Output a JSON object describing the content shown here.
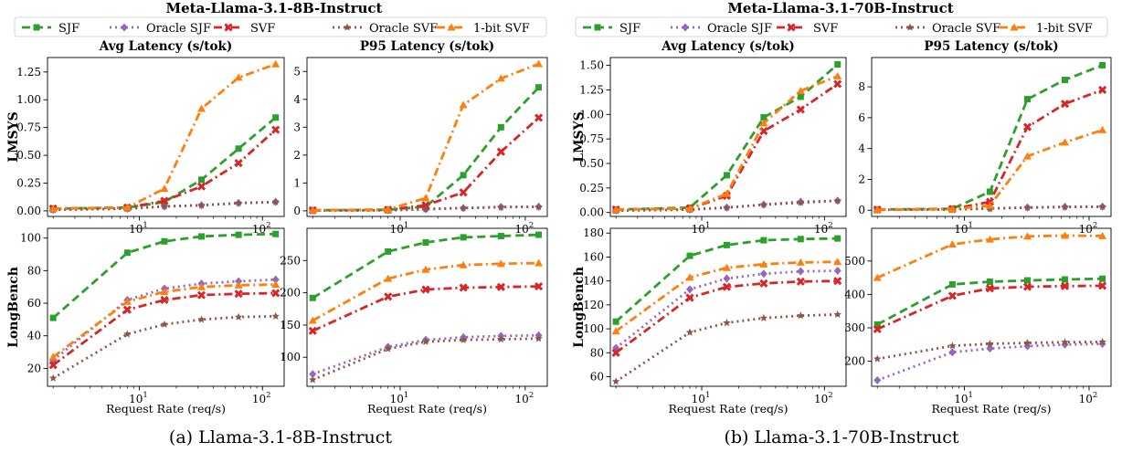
{
  "colors": {
    "SJF": "#2ca02c",
    "Oracle SJF": "#9467bd",
    "SVF": "#d62728",
    "Oracle SVF": "#8c564b",
    "1-bit SVF": "#ff7f0e"
  },
  "captions": [
    "(a) Llama-3.1-8B-Instruct",
    "(b) Llama-3.1-70B-Instruct"
  ],
  "figures": [
    {
      "title": "Meta-Llama-3.1-8B-Instruct",
      "legend": [
        "SJF",
        "Oracle SJF",
        "SVF",
        "Oracle SVF",
        "1-bit SVF"
      ],
      "col_titles": [
        "Avg Latency (s/tok)",
        "P95 Latency (s/tok)"
      ],
      "row_labels": [
        "LMSYS",
        "LongBench"
      ],
      "xlabel": "Request Rate (req/s)"
    },
    {
      "title": "Meta-Llama-3.1-70B-Instruct",
      "legend": [
        "SJF",
        "Oracle SJF",
        "SVF",
        "Oracle SVF",
        "1-bit SVF"
      ],
      "col_titles": [
        "Avg Latency (s/tok)",
        "P95 Latency (s/tok)"
      ],
      "row_labels": [
        "LMSYS",
        "LongBench"
      ],
      "xlabel": "Request Rate (req/s)"
    }
  ],
  "chart_data": [
    {
      "type": "line",
      "figure": "Meta-Llama-3.1-8B-Instruct",
      "row": "LMSYS",
      "title": "Avg Latency (s/tok)",
      "xscale": "log",
      "xlim": [
        1.8,
        150
      ],
      "ylim": [
        -0.05,
        1.38
      ],
      "yticks": [
        0.0,
        0.25,
        0.5,
        0.75,
        1.0,
        1.25
      ],
      "yticklabels": [
        "0.00",
        "0.25",
        "0.50",
        "0.75",
        "1.00",
        "1.25"
      ],
      "x": [
        2,
        8,
        16,
        32,
        64,
        128
      ],
      "series": [
        {
          "name": "SJF",
          "values": [
            0.02,
            0.03,
            0.08,
            0.28,
            0.56,
            0.84
          ]
        },
        {
          "name": "Oracle SJF",
          "values": [
            0.01,
            0.02,
            0.04,
            0.05,
            0.07,
            0.08
          ]
        },
        {
          "name": "SVF",
          "values": [
            0.02,
            0.03,
            0.09,
            0.22,
            0.43,
            0.73
          ]
        },
        {
          "name": "Oracle SVF",
          "values": [
            0.01,
            0.02,
            0.04,
            0.05,
            0.07,
            0.08
          ]
        },
        {
          "name": "1-bit SVF",
          "values": [
            0.02,
            0.03,
            0.2,
            0.92,
            1.2,
            1.32
          ]
        }
      ]
    },
    {
      "type": "line",
      "figure": "Meta-Llama-3.1-8B-Instruct",
      "row": "LMSYS",
      "title": "P95 Latency (s/tok)",
      "xscale": "log",
      "xlim": [
        1.8,
        150
      ],
      "ylim": [
        -0.2,
        5.5
      ],
      "yticks": [
        0,
        1,
        2,
        3,
        4,
        5
      ],
      "yticklabels": [
        "0",
        "1",
        "2",
        "3",
        "4",
        "5"
      ],
      "x": [
        2,
        8,
        16,
        32,
        64,
        128
      ],
      "series": [
        {
          "name": "SJF",
          "values": [
            0.02,
            0.04,
            0.15,
            1.28,
            3.0,
            4.43
          ]
        },
        {
          "name": "Oracle SJF",
          "values": [
            0.01,
            0.02,
            0.06,
            0.1,
            0.14,
            0.15
          ]
        },
        {
          "name": "SVF",
          "values": [
            0.02,
            0.04,
            0.2,
            0.66,
            2.12,
            3.34
          ]
        },
        {
          "name": "Oracle SVF",
          "values": [
            0.01,
            0.02,
            0.06,
            0.1,
            0.13,
            0.14
          ]
        },
        {
          "name": "1-bit SVF",
          "values": [
            0.02,
            0.05,
            0.46,
            3.8,
            4.75,
            5.27
          ]
        }
      ]
    },
    {
      "type": "line",
      "figure": "Meta-Llama-3.1-8B-Instruct",
      "row": "LongBench",
      "title": "Avg Latency (s/tok)",
      "xscale": "log",
      "xlim": [
        1.8,
        150
      ],
      "ylim": [
        9,
        106
      ],
      "yticks": [
        20,
        40,
        60,
        80,
        100
      ],
      "yticklabels": [
        "20",
        "40",
        "60",
        "80",
        "100"
      ],
      "x": [
        2,
        8,
        16,
        32,
        64,
        128
      ],
      "series": [
        {
          "name": "SJF",
          "values": [
            51,
            91,
            98,
            101,
            102,
            102.5
          ]
        },
        {
          "name": "Oracle SJF",
          "values": [
            25,
            62,
            69,
            72,
            73.5,
            74.5
          ]
        },
        {
          "name": "SVF",
          "values": [
            22,
            56,
            62,
            65,
            65.8,
            66.2
          ]
        },
        {
          "name": "Oracle SVF",
          "values": [
            14,
            41,
            47,
            50,
            51.5,
            52
          ]
        },
        {
          "name": "1-bit SVF",
          "values": [
            27,
            61,
            67,
            70,
            71,
            71.5
          ]
        }
      ]
    },
    {
      "type": "line",
      "figure": "Meta-Llama-3.1-8B-Instruct",
      "row": "LongBench",
      "title": "P95 Latency (s/tok)",
      "xscale": "log",
      "xlim": [
        1.8,
        150
      ],
      "ylim": [
        55,
        300
      ],
      "yticks": [
        100,
        150,
        200,
        250
      ],
      "yticklabels": [
        "100",
        "150",
        "200",
        "250"
      ],
      "x": [
        2,
        8,
        16,
        32,
        64,
        128
      ],
      "series": [
        {
          "name": "SJF",
          "values": [
            192,
            264,
            278,
            286,
            288,
            290
          ]
        },
        {
          "name": "Oracle SJF",
          "values": [
            74,
            116,
            127,
            131,
            133,
            134
          ]
        },
        {
          "name": "SVF",
          "values": [
            141,
            194,
            205,
            208,
            209,
            210
          ]
        },
        {
          "name": "Oracle SVF",
          "values": [
            65,
            113,
            124,
            127,
            128,
            129
          ]
        },
        {
          "name": "1-bit SVF",
          "values": [
            157,
            222,
            236,
            243,
            245,
            246
          ]
        }
      ]
    },
    {
      "type": "line",
      "figure": "Meta-Llama-3.1-70B-Instruct",
      "row": "LMSYS",
      "title": "Avg Latency (s/tok)",
      "xscale": "log",
      "xlim": [
        1.8,
        150
      ],
      "ylim": [
        -0.04,
        1.58
      ],
      "yticks": [
        0.0,
        0.25,
        0.5,
        0.75,
        1.0,
        1.25,
        1.5
      ],
      "yticklabels": [
        "0.00",
        "0.25",
        "0.50",
        "0.75",
        "1.00",
        "1.25",
        "1.50"
      ],
      "x": [
        2,
        8,
        16,
        32,
        64,
        128
      ],
      "series": [
        {
          "name": "SJF",
          "values": [
            0.03,
            0.05,
            0.38,
            0.97,
            1.18,
            1.51
          ]
        },
        {
          "name": "Oracle SJF",
          "values": [
            0.02,
            0.03,
            0.05,
            0.08,
            0.11,
            0.12
          ]
        },
        {
          "name": "SVF",
          "values": [
            0.03,
            0.04,
            0.17,
            0.83,
            1.05,
            1.31
          ]
        },
        {
          "name": "Oracle SVF",
          "values": [
            0.02,
            0.03,
            0.05,
            0.08,
            0.1,
            0.12
          ]
        },
        {
          "name": "1-bit SVF",
          "values": [
            0.03,
            0.04,
            0.19,
            0.91,
            1.24,
            1.39
          ]
        }
      ]
    },
    {
      "type": "line",
      "figure": "Meta-Llama-3.1-70B-Instruct",
      "row": "LMSYS",
      "title": "P95 Latency (s/tok)",
      "xscale": "log",
      "xlim": [
        1.8,
        150
      ],
      "ylim": [
        -0.4,
        9.9
      ],
      "yticks": [
        0,
        2,
        4,
        6,
        8
      ],
      "yticklabels": [
        "0",
        "2",
        "4",
        "6",
        "8"
      ],
      "x": [
        2,
        8,
        16,
        32,
        64,
        128
      ],
      "series": [
        {
          "name": "SJF",
          "values": [
            0.05,
            0.1,
            1.2,
            7.2,
            8.45,
            9.4
          ]
        },
        {
          "name": "Oracle SJF",
          "values": [
            0.03,
            0.06,
            0.12,
            0.18,
            0.22,
            0.24
          ]
        },
        {
          "name": "SVF",
          "values": [
            0.04,
            0.08,
            0.55,
            5.4,
            6.9,
            7.8
          ]
        },
        {
          "name": "Oracle SVF",
          "values": [
            0.03,
            0.05,
            0.11,
            0.17,
            0.21,
            0.23
          ]
        },
        {
          "name": "1-bit SVF",
          "values": [
            0.04,
            0.08,
            0.3,
            3.5,
            4.4,
            5.2
          ]
        }
      ]
    },
    {
      "type": "line",
      "figure": "Meta-Llama-3.1-70B-Instruct",
      "row": "LongBench",
      "title": "Avg Latency (s/tok)",
      "xscale": "log",
      "xlim": [
        1.8,
        150
      ],
      "ylim": [
        52,
        184
      ],
      "yticks": [
        60,
        80,
        100,
        120,
        140,
        160,
        180
      ],
      "yticklabels": [
        "60",
        "80",
        "100",
        "120",
        "140",
        "160",
        "180"
      ],
      "x": [
        2,
        8,
        16,
        32,
        64,
        128
      ],
      "series": [
        {
          "name": "SJF",
          "values": [
            106,
            161,
            170,
            174,
            175,
            175.5
          ]
        },
        {
          "name": "Oracle SJF",
          "values": [
            84,
            133,
            142,
            146,
            148,
            148.5
          ]
        },
        {
          "name": "SVF",
          "values": [
            80,
            126,
            135,
            138,
            139.5,
            140
          ]
        },
        {
          "name": "Oracle SVF",
          "values": [
            56,
            97,
            105,
            109,
            111,
            112
          ]
        },
        {
          "name": "1-bit SVF",
          "values": [
            98,
            143,
            151,
            154,
            155.5,
            156
          ]
        }
      ]
    },
    {
      "type": "line",
      "figure": "Meta-Llama-3.1-70B-Instruct",
      "row": "LongBench",
      "title": "P95 Latency (s/tok)",
      "xscale": "log",
      "xlim": [
        1.8,
        150
      ],
      "ylim": [
        125,
        598
      ],
      "yticks": [
        200,
        300,
        400,
        500
      ],
      "yticklabels": [
        "200",
        "300",
        "400",
        "500"
      ],
      "x": [
        2,
        8,
        16,
        32,
        64,
        128
      ],
      "series": [
        {
          "name": "SJF",
          "values": [
            310,
            430,
            438,
            442,
            445,
            447
          ]
        },
        {
          "name": "Oracle SJF",
          "values": [
            143,
            227,
            238,
            245,
            250,
            252
          ]
        },
        {
          "name": "SVF",
          "values": [
            296,
            396,
            418,
            423,
            425,
            426
          ]
        },
        {
          "name": "Oracle SVF",
          "values": [
            207,
            246,
            252,
            255,
            257,
            258
          ]
        },
        {
          "name": "1-bit SVF",
          "values": [
            450,
            550,
            565,
            574,
            576,
            575
          ]
        }
      ]
    }
  ]
}
